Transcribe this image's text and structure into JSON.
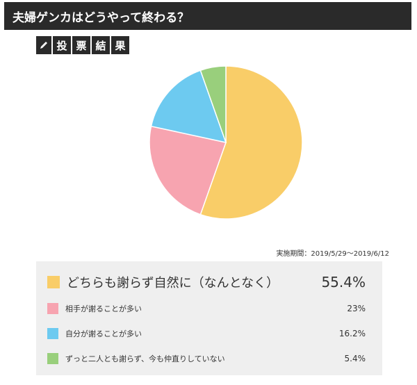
{
  "header": {
    "title": "夫婦ゲンカはどうやって終わる？"
  },
  "badge": {
    "icon": "pencil-icon",
    "chars": [
      "投",
      "票",
      "結",
      "果"
    ]
  },
  "period": "実施期間：2019/5/29〜2019/6/12",
  "chart_data": {
    "type": "pie",
    "slices": [
      {
        "label": "どちらも謝らず自然に（なんとなく）",
        "value": 55.4,
        "value_label": "55.4%",
        "color": "#f9cd68"
      },
      {
        "label": "相手が謝ることが多い",
        "value": 23,
        "value_label": "23%",
        "color": "#f7a4b0"
      },
      {
        "label": "自分が謝ることが多い",
        "value": 16.2,
        "value_label": "16.2%",
        "color": "#6dcaf0"
      },
      {
        "label": "ずっと二人とも謝らず、今も仲直りしていない",
        "value": 5.4,
        "value_label": "5.4%",
        "color": "#99cf7c"
      }
    ]
  }
}
